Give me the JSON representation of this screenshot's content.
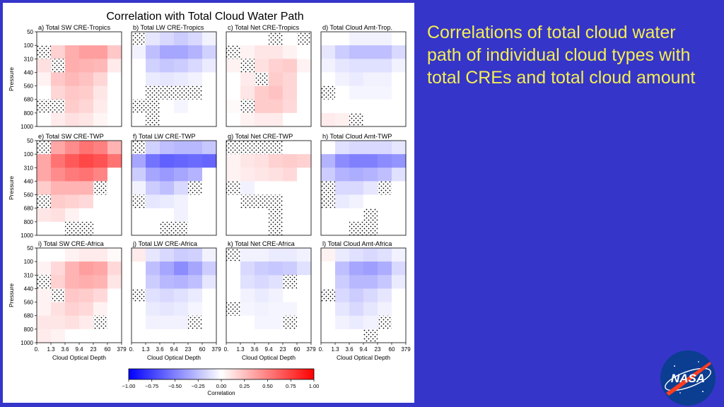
{
  "slide": {
    "background": "#3535c9",
    "caption_color": "#f4ee52",
    "caption_lines": [
      "Correlations of total cloud water",
      "path of individual cloud types with",
      "total CREs and total cloud amount"
    ],
    "logo_text": "NASA"
  },
  "chart_data": {
    "type": "heatmap",
    "title": "Correlation with Total Cloud Water Path",
    "xlabel": "Cloud Optical Depth",
    "ylabel": "Pressure",
    "x_ticks": [
      "0.",
      "1.3",
      "3.6",
      "9.4",
      "23",
      "60",
      "379"
    ],
    "y_ticks": [
      "50",
      "100",
      "310",
      "440",
      "560",
      "680",
      "800",
      "1000"
    ],
    "colorbar": {
      "label": "Correlation",
      "ticks": [
        "−1.00",
        "−0.75",
        "−0.50",
        "−0.25",
        "0.00",
        "0.25",
        "0.50",
        "0.75",
        "1.00"
      ],
      "range": [
        -1,
        1
      ],
      "colormap": "bwr"
    },
    "panels": [
      {
        "label": "a) Total SW CRE-Tropics",
        "values": [
          [
            0,
            0,
            0,
            0,
            0,
            0
          ],
          [
            0,
            0.18,
            0.32,
            0.38,
            0.38,
            0.22
          ],
          [
            0.12,
            0.26,
            0.32,
            0.3,
            0.28,
            0.08
          ],
          [
            0.05,
            0.22,
            0.28,
            0.24,
            0.16,
            0
          ],
          [
            0,
            0.16,
            0.22,
            0.2,
            0.1,
            0
          ],
          [
            0.05,
            0.14,
            0.2,
            0.16,
            0.08,
            0
          ],
          [
            0,
            0.08,
            0.12,
            0.1,
            0.04,
            0
          ]
        ],
        "stipple": [
          [
            1,
            0
          ],
          [
            2,
            1
          ],
          [
            5,
            0
          ],
          [
            5,
            1
          ]
        ]
      },
      {
        "label": "b) Total LW CRE-Tropics",
        "values": [
          [
            0,
            -0.1,
            -0.15,
            -0.2,
            -0.15,
            -0.05
          ],
          [
            -0.05,
            -0.25,
            -0.35,
            -0.35,
            -0.3,
            -0.18
          ],
          [
            0,
            -0.18,
            -0.22,
            -0.2,
            -0.15,
            -0.08
          ],
          [
            0,
            -0.08,
            -0.1,
            -0.08,
            -0.05,
            0
          ],
          [
            0,
            0,
            0,
            0,
            0,
            0
          ],
          [
            0,
            0,
            0,
            -0.04,
            0,
            0
          ],
          [
            0,
            0,
            0,
            0,
            0,
            0
          ]
        ],
        "stipple": [
          [
            0,
            0
          ],
          [
            4,
            1
          ],
          [
            4,
            2
          ],
          [
            4,
            3
          ],
          [
            4,
            4
          ],
          [
            5,
            0
          ],
          [
            5,
            1
          ],
          [
            6,
            1
          ]
        ]
      },
      {
        "label": "c) Total Net CRE-Tropics",
        "values": [
          [
            0,
            0,
            0,
            0,
            0,
            0
          ],
          [
            0.05,
            0.05,
            0.1,
            0.1,
            0.05,
            0
          ],
          [
            0.05,
            0.1,
            0.12,
            0.18,
            0.2,
            0.05
          ],
          [
            0,
            0.08,
            0.15,
            0.2,
            0.16,
            0
          ],
          [
            0,
            0.1,
            0.2,
            0.24,
            0.16,
            0
          ],
          [
            0.02,
            0.1,
            0.2,
            0.2,
            0.15,
            0
          ],
          [
            0,
            0.05,
            0.08,
            0.08,
            0,
            0
          ]
        ],
        "stipple": [
          [
            0,
            3
          ],
          [
            0,
            5
          ],
          [
            1,
            0
          ],
          [
            2,
            1
          ],
          [
            3,
            2
          ],
          [
            5,
            1
          ]
        ]
      },
      {
        "label": "d) Total Cloud Amt-Trop.",
        "values": [
          [
            0,
            0,
            -0.05,
            -0.05,
            -0.05,
            0
          ],
          [
            -0.1,
            -0.2,
            -0.25,
            -0.25,
            -0.25,
            -0.15
          ],
          [
            -0.05,
            -0.1,
            -0.12,
            -0.12,
            -0.12,
            -0.05
          ],
          [
            0,
            -0.05,
            -0.08,
            -0.05,
            -0.05,
            0
          ],
          [
            0,
            0,
            -0.04,
            -0.04,
            -0.04,
            0
          ],
          [
            0,
            0,
            0,
            0,
            0,
            0
          ],
          [
            0.08,
            0.06,
            0,
            0,
            0,
            0
          ]
        ],
        "stipple": [
          [
            4,
            0
          ],
          [
            6,
            2
          ]
        ]
      },
      {
        "label": "e) Total SW CRE-TWP",
        "values": [
          [
            0,
            0.35,
            0.45,
            0.55,
            0.5,
            0.3
          ],
          [
            0.35,
            0.55,
            0.65,
            0.72,
            0.68,
            0.55
          ],
          [
            0.35,
            0.45,
            0.52,
            0.55,
            0.48,
            0
          ],
          [
            0.2,
            0.3,
            0.3,
            0.3,
            0,
            0
          ],
          [
            0.15,
            0.2,
            0.18,
            0.15,
            0,
            0
          ],
          [
            0.1,
            0.12,
            0.05,
            0,
            0,
            0
          ],
          [
            0,
            0,
            0,
            0,
            0,
            0
          ]
        ],
        "stipple": [
          [
            0,
            0
          ],
          [
            3,
            4
          ],
          [
            4,
            0
          ],
          [
            6,
            2
          ],
          [
            6,
            3
          ]
        ]
      },
      {
        "label": "f) Total LW CRE-TWP",
        "values": [
          [
            0,
            -0.18,
            -0.25,
            -0.28,
            -0.28,
            -0.22
          ],
          [
            -0.35,
            -0.55,
            -0.62,
            -0.6,
            -0.58,
            -0.6
          ],
          [
            -0.2,
            -0.35,
            -0.4,
            -0.35,
            -0.3,
            0
          ],
          [
            -0.05,
            -0.2,
            -0.25,
            -0.15,
            0,
            0
          ],
          [
            0,
            -0.1,
            -0.08,
            -0.05,
            0,
            0
          ],
          [
            0,
            0,
            0,
            -0.05,
            0,
            0
          ],
          [
            0,
            0,
            0,
            0,
            0,
            0
          ]
        ],
        "stipple": [
          [
            0,
            0
          ],
          [
            3,
            4
          ],
          [
            4,
            0
          ],
          [
            6,
            2
          ],
          [
            6,
            3
          ]
        ]
      },
      {
        "label": "g) Total Net CRE-TWP",
        "values": [
          [
            0,
            0,
            0,
            0,
            0,
            0
          ],
          [
            0.05,
            0.1,
            0.12,
            0.18,
            0.2,
            0.18
          ],
          [
            0.05,
            0.08,
            0.1,
            0.12,
            0.15,
            0
          ],
          [
            0,
            -0.05,
            0,
            0,
            0,
            0
          ],
          [
            0,
            0,
            0,
            0,
            0,
            0
          ],
          [
            0,
            0,
            0,
            0,
            0,
            0
          ],
          [
            0,
            0,
            0,
            0,
            0,
            0
          ]
        ],
        "stipple": [
          [
            0,
            0
          ],
          [
            0,
            1
          ],
          [
            0,
            2
          ],
          [
            0,
            3
          ],
          [
            3,
            0
          ],
          [
            4,
            1
          ],
          [
            4,
            2
          ],
          [
            4,
            3
          ],
          [
            5,
            3
          ],
          [
            6,
            3
          ]
        ]
      },
      {
        "label": "h) Total Cloud Amt-TWP",
        "values": [
          [
            0,
            -0.12,
            -0.15,
            -0.15,
            -0.15,
            -0.1
          ],
          [
            -0.3,
            -0.45,
            -0.5,
            -0.5,
            -0.45,
            -0.42
          ],
          [
            -0.2,
            -0.3,
            -0.32,
            -0.3,
            -0.25,
            -0.12
          ],
          [
            0,
            -0.15,
            -0.15,
            -0.1,
            0,
            0
          ],
          [
            0,
            -0.08,
            -0.05,
            0,
            0,
            0
          ],
          [
            0,
            0,
            0,
            0,
            0,
            0
          ],
          [
            0,
            0,
            0,
            0,
            0,
            0
          ]
        ],
        "stipple": [
          [
            3,
            0
          ],
          [
            3,
            4
          ],
          [
            4,
            0
          ],
          [
            5,
            3
          ],
          [
            6,
            2
          ],
          [
            6,
            3
          ]
        ]
      },
      {
        "label": "i) Total SW CRE-Africa",
        "values": [
          [
            0,
            0,
            0.05,
            0.08,
            0.08,
            0.02
          ],
          [
            0.05,
            0.15,
            0.3,
            0.38,
            0.35,
            0.15
          ],
          [
            0,
            0.18,
            0.3,
            0.32,
            0.3,
            0.1
          ],
          [
            0.05,
            0.18,
            0.22,
            0.2,
            0.15,
            0
          ],
          [
            0.05,
            0.12,
            0.18,
            0.15,
            0.05,
            0
          ],
          [
            0.1,
            0.1,
            0.12,
            0.08,
            0,
            0
          ],
          [
            0.08,
            0.05,
            0,
            0,
            0,
            0
          ]
        ],
        "stipple": [
          [
            2,
            0
          ],
          [
            3,
            1
          ],
          [
            5,
            4
          ]
        ]
      },
      {
        "label": "j) Total LW CRE-Africa",
        "values": [
          [
            0.08,
            -0.1,
            -0.15,
            -0.2,
            -0.18,
            -0.05
          ],
          [
            0,
            -0.25,
            -0.35,
            -0.45,
            -0.35,
            -0.2
          ],
          [
            0,
            -0.2,
            -0.28,
            -0.3,
            -0.25,
            -0.1
          ],
          [
            0,
            -0.12,
            -0.15,
            -0.12,
            -0.08,
            0
          ],
          [
            0,
            -0.08,
            -0.1,
            -0.08,
            -0.04,
            0
          ],
          [
            0,
            -0.05,
            -0.05,
            -0.05,
            0,
            0
          ],
          [
            0,
            0,
            0,
            0,
            0,
            0
          ]
        ],
        "stipple": [
          [
            3,
            0
          ],
          [
            5,
            4
          ]
        ]
      },
      {
        "label": "k) Total Net CRE-Africa",
        "values": [
          [
            0,
            -0.05,
            -0.05,
            -0.08,
            -0.08,
            -0.05
          ],
          [
            0,
            -0.15,
            -0.2,
            -0.22,
            -0.2,
            -0.12
          ],
          [
            0,
            -0.12,
            -0.15,
            -0.12,
            -0.1,
            0
          ],
          [
            0,
            -0.05,
            -0.08,
            -0.05,
            0,
            0
          ],
          [
            0,
            -0.04,
            -0.05,
            -0.04,
            -0.04,
            0
          ],
          [
            0,
            0,
            -0.04,
            -0.04,
            0,
            0
          ],
          [
            0,
            0,
            0,
            0,
            0,
            0
          ]
        ],
        "stipple": [
          [
            0,
            0
          ],
          [
            2,
            4
          ],
          [
            4,
            0
          ],
          [
            5,
            4
          ]
        ]
      },
      {
        "label": "l) Total Cloud Amt-Africa",
        "values": [
          [
            0.05,
            -0.08,
            -0.12,
            -0.15,
            -0.12,
            -0.05
          ],
          [
            0,
            -0.25,
            -0.35,
            -0.38,
            -0.32,
            -0.15
          ],
          [
            0,
            -0.2,
            -0.28,
            -0.28,
            -0.22,
            -0.08
          ],
          [
            0,
            -0.15,
            -0.2,
            -0.15,
            -0.1,
            0
          ],
          [
            0,
            -0.1,
            -0.15,
            -0.1,
            -0.05,
            0
          ],
          [
            0,
            -0.05,
            -0.08,
            -0.05,
            0,
            0
          ],
          [
            0,
            0,
            0,
            0,
            0,
            0
          ]
        ],
        "stipple": [
          [
            3,
            0
          ],
          [
            5,
            4
          ],
          [
            6,
            3
          ]
        ]
      }
    ]
  }
}
